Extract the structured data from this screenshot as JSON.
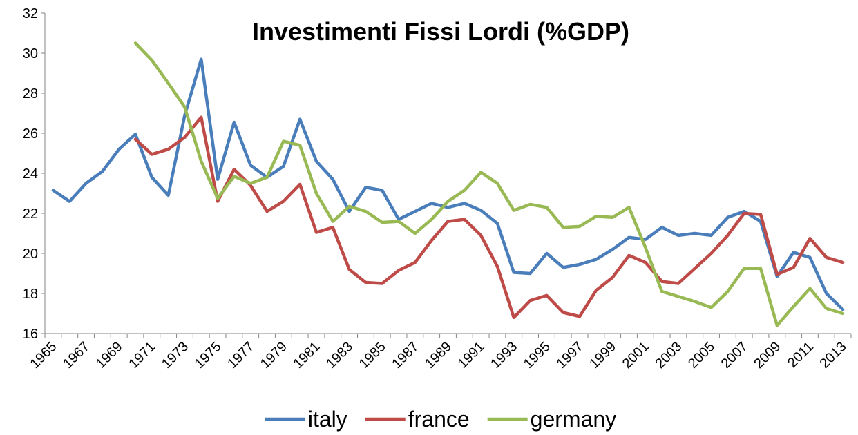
{
  "chart_data": {
    "type": "line",
    "title": "Investimenti Fissi Lordi (%GDP)",
    "categories": [
      "1965",
      null,
      "1967",
      null,
      "1969",
      null,
      "1971",
      null,
      "1973",
      null,
      "1975",
      null,
      "1977",
      null,
      "1979",
      null,
      "1981",
      null,
      "1983",
      null,
      "1985",
      null,
      "1987",
      null,
      "1989",
      null,
      "1991",
      null,
      "1993",
      null,
      "1995",
      null,
      "1997",
      null,
      "1999",
      null,
      "2001",
      null,
      "2003",
      null,
      "2005",
      null,
      "2007",
      null,
      "2009",
      null,
      "2011",
      null,
      "2013"
    ],
    "series": [
      {
        "name": "italy",
        "color": "#4a7ebb",
        "values": [
          23.15,
          22.6,
          23.5,
          24.1,
          25.2,
          25.95,
          23.8,
          22.9,
          26.9,
          29.7,
          23.7,
          26.55,
          24.4,
          23.8,
          24.35,
          26.7,
          24.6,
          23.7,
          22.1,
          23.3,
          23.15,
          21.7,
          22.1,
          22.5,
          22.3,
          22.5,
          22.15,
          21.5,
          19.05,
          19.0,
          20.0,
          19.3,
          19.45,
          19.7,
          20.2,
          20.8,
          20.7,
          21.3,
          20.9,
          21.0,
          20.9,
          21.8,
          22.1,
          21.6,
          18.85,
          20.05,
          19.8,
          18.0,
          17.2
        ]
      },
      {
        "name": "france",
        "color": "#be4b48",
        "values": [
          null,
          null,
          null,
          null,
          null,
          25.7,
          24.95,
          25.2,
          25.8,
          26.8,
          22.6,
          24.2,
          23.4,
          22.1,
          22.6,
          23.45,
          21.05,
          21.3,
          19.2,
          18.55,
          18.5,
          19.15,
          19.55,
          20.65,
          21.6,
          21.7,
          20.9,
          19.35,
          16.8,
          17.65,
          17.9,
          17.05,
          16.85,
          18.15,
          18.8,
          19.9,
          19.55,
          18.6,
          18.5,
          19.25,
          20.0,
          20.9,
          22.0,
          21.95,
          18.95,
          19.3,
          20.75,
          19.8,
          19.55
        ]
      },
      {
        "name": "germany",
        "color": "#98b954",
        "values": [
          null,
          null,
          null,
          null,
          null,
          30.5,
          29.65,
          28.5,
          27.3,
          24.6,
          22.75,
          23.85,
          23.5,
          23.8,
          25.6,
          25.4,
          23.0,
          21.6,
          22.35,
          22.1,
          21.55,
          21.6,
          21.0,
          21.7,
          22.6,
          23.15,
          24.05,
          23.5,
          22.15,
          22.45,
          22.3,
          21.3,
          21.35,
          21.85,
          21.8,
          22.3,
          20.3,
          18.1,
          17.85,
          17.6,
          17.3,
          18.1,
          19.25,
          19.25,
          16.4,
          17.35,
          18.25,
          17.25,
          17.0
        ]
      }
    ],
    "ylim": [
      16,
      32
    ],
    "yticks": [
      16,
      18,
      20,
      22,
      24,
      26,
      28,
      30,
      32
    ],
    "grid": false,
    "legend": "bottom"
  }
}
